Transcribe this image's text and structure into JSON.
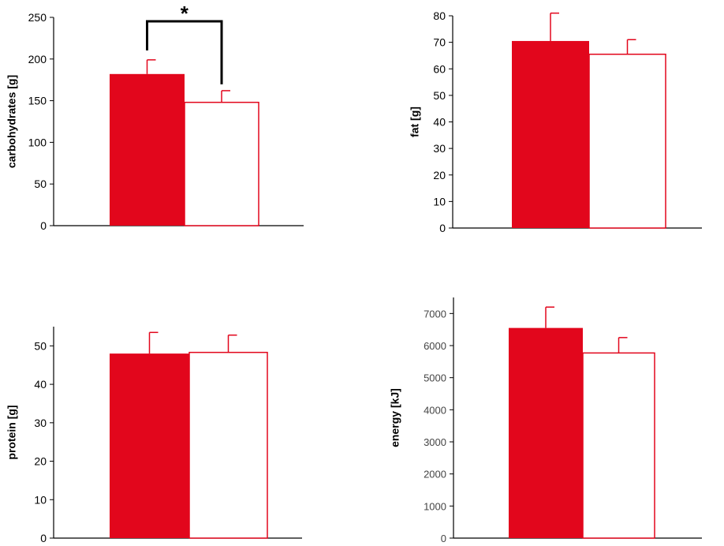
{
  "colors": {
    "bar_filled": "#e2061c",
    "bar_outline": "#e2061c",
    "axis": "#000000",
    "error": "#e2061c",
    "bracket": "#000000"
  },
  "chart_data": [
    {
      "type": "bar",
      "title": "",
      "xlabel": "",
      "ylabel": "carbohydrates [g]",
      "ylim": [
        0,
        250
      ],
      "yticks": [
        0,
        50,
        100,
        150,
        200,
        250
      ],
      "series": [
        {
          "style": "filled",
          "value": 182,
          "error": 17
        },
        {
          "style": "open",
          "value": 148,
          "error": 14
        }
      ],
      "significance": {
        "marker": "*",
        "between": [
          0,
          1
        ]
      },
      "grid": false
    },
    {
      "type": "bar",
      "title": "",
      "xlabel": "",
      "ylabel": "fat [g]",
      "ylim": [
        0,
        80
      ],
      "yticks": [
        0,
        10,
        20,
        30,
        40,
        50,
        60,
        70,
        80
      ],
      "series": [
        {
          "style": "filled",
          "value": 70.5,
          "error": 10.5
        },
        {
          "style": "open",
          "value": 65.5,
          "error": 5.5
        }
      ],
      "grid": false
    },
    {
      "type": "bar",
      "title": "",
      "xlabel": "",
      "ylabel": "protein [g]",
      "ylim": [
        0,
        55
      ],
      "yticks": [
        0,
        10,
        20,
        30,
        40,
        50
      ],
      "series": [
        {
          "style": "filled",
          "value": 48,
          "error": 5.5
        },
        {
          "style": "open",
          "value": 48.3,
          "error": 4.5
        }
      ],
      "grid": false
    },
    {
      "type": "bar",
      "title": "",
      "xlabel": "",
      "ylabel": "energy [kJ]",
      "ylim": [
        0,
        7500
      ],
      "yticks": [
        0,
        1000,
        2000,
        3000,
        4000,
        5000,
        6000,
        7000
      ],
      "series": [
        {
          "style": "filled",
          "value": 6550,
          "error": 650
        },
        {
          "style": "open",
          "value": 5770,
          "error": 480
        }
      ],
      "grid": false
    }
  ]
}
